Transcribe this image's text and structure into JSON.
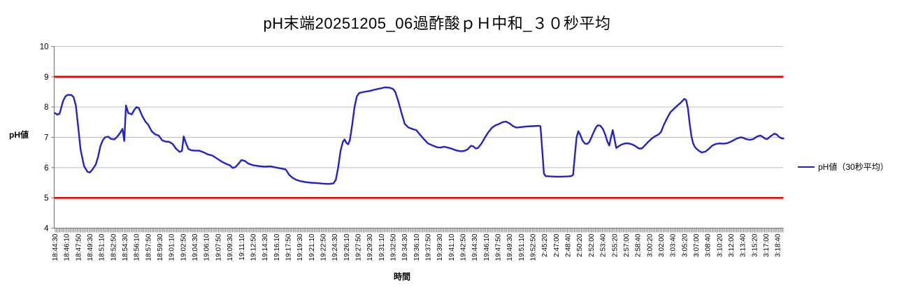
{
  "chart_data": {
    "type": "line",
    "title": "pH末端20251205_06過酢酸ｐＨ中和_３０秒平均",
    "xlabel": "時間",
    "ylabel": "pH値",
    "ylim": [
      4,
      10
    ],
    "y_ticks": [
      4,
      5,
      6,
      7,
      8,
      9,
      10
    ],
    "grid": true,
    "legend_position": "right",
    "colors": {
      "series_line": "#2222CC",
      "reference_line": "#E80000",
      "gridline": "#BFBFBF",
      "axis": "#808080",
      "text": "#000000",
      "background": "#FFFFFF"
    },
    "reference_lines": [
      {
        "name": "upper-limit",
        "value": 9,
        "color": "#E80000"
      },
      {
        "name": "lower-limit",
        "value": 5,
        "color": "#E80000"
      }
    ],
    "x_tick_labels": [
      "18:44:30",
      "18:46:10",
      "18:47:50",
      "18:49:30",
      "18:51:10",
      "18:52:50",
      "18:54:30",
      "18:56:10",
      "18:57:50",
      "18:59:30",
      "19:01:10",
      "19:02:50",
      "19:04:30",
      "19:06:10",
      "19:07:50",
      "19:09:30",
      "19:11:10",
      "19:12:50",
      "19:14:30",
      "19:16:10",
      "19:17:50",
      "19:19:30",
      "19:21:10",
      "19:22:50",
      "19:24:30",
      "19:26:10",
      "19:27:50",
      "19:29:30",
      "19:31:10",
      "19:32:50",
      "19:34:30",
      "19:36:10",
      "19:37:50",
      "19:39:30",
      "19:41:10",
      "19:42:50",
      "19:44:30",
      "19:46:10",
      "19:47:50",
      "19:49:30",
      "19:51:10",
      "19:52:50",
      "2:45:20",
      "2:47:00",
      "2:48:40",
      "2:50:20",
      "2:52:00",
      "2:53:40",
      "2:55:20",
      "2:57:00",
      "2:58:40",
      "3:00:20",
      "3:02:00",
      "3:03:40",
      "3:05:20",
      "3:07:00",
      "3:08:40",
      "3:10:20",
      "3:12:00",
      "3:13:40",
      "3:15:20",
      "3:17:00",
      "3:18:40"
    ],
    "x_range_label_units": [
      0,
      62.5
    ],
    "series": [
      {
        "name": "pH値（30秒平均）",
        "color": "#2222CC",
        "points_label_units": [
          [
            0,
            7.8
          ],
          [
            0.2,
            7.75
          ],
          [
            0.4,
            7.78
          ],
          [
            0.7,
            8.2
          ],
          [
            0.9,
            8.35
          ],
          [
            1.1,
            8.4
          ],
          [
            1.4,
            8.4
          ],
          [
            1.6,
            8.33
          ],
          [
            1.8,
            8.05
          ],
          [
            2.0,
            7.35
          ],
          [
            2.2,
            6.6
          ],
          [
            2.5,
            6.05
          ],
          [
            2.8,
            5.86
          ],
          [
            3.0,
            5.84
          ],
          [
            3.2,
            5.93
          ],
          [
            3.5,
            6.1
          ],
          [
            3.7,
            6.35
          ],
          [
            3.9,
            6.7
          ],
          [
            4.1,
            6.9
          ],
          [
            4.3,
            7.0
          ],
          [
            4.6,
            7.02
          ],
          [
            4.8,
            6.95
          ],
          [
            5.1,
            6.93
          ],
          [
            5.3,
            7.0
          ],
          [
            5.6,
            7.15
          ],
          [
            5.8,
            7.28
          ],
          [
            5.95,
            6.88
          ],
          [
            6.1,
            8.05
          ],
          [
            6.3,
            7.8
          ],
          [
            6.6,
            7.76
          ],
          [
            6.8,
            7.9
          ],
          [
            7.0,
            8.0
          ],
          [
            7.2,
            7.97
          ],
          [
            7.5,
            7.7
          ],
          [
            7.8,
            7.5
          ],
          [
            8.0,
            7.42
          ],
          [
            8.3,
            7.2
          ],
          [
            8.6,
            7.1
          ],
          [
            8.9,
            7.06
          ],
          [
            9.2,
            6.9
          ],
          [
            9.5,
            6.86
          ],
          [
            9.8,
            6.85
          ],
          [
            10.1,
            6.78
          ],
          [
            10.4,
            6.62
          ],
          [
            10.7,
            6.52
          ],
          [
            10.9,
            6.55
          ],
          [
            11.05,
            7.03
          ],
          [
            11.25,
            6.8
          ],
          [
            11.45,
            6.62
          ],
          [
            11.7,
            6.57
          ],
          [
            12.0,
            6.56
          ],
          [
            12.4,
            6.56
          ],
          [
            12.8,
            6.5
          ],
          [
            13.1,
            6.44
          ],
          [
            13.5,
            6.4
          ],
          [
            13.9,
            6.3
          ],
          [
            14.3,
            6.2
          ],
          [
            14.7,
            6.12
          ],
          [
            15.0,
            6.08
          ],
          [
            15.25,
            5.99
          ],
          [
            15.5,
            6.02
          ],
          [
            15.8,
            6.15
          ],
          [
            16.0,
            6.25
          ],
          [
            16.3,
            6.22
          ],
          [
            16.6,
            6.13
          ],
          [
            17.0,
            6.08
          ],
          [
            17.5,
            6.05
          ],
          [
            18.0,
            6.03
          ],
          [
            18.5,
            6.04
          ],
          [
            19.0,
            6.0
          ],
          [
            19.4,
            5.97
          ],
          [
            19.8,
            5.94
          ],
          [
            20.1,
            5.76
          ],
          [
            20.4,
            5.66
          ],
          [
            20.7,
            5.6
          ],
          [
            21.0,
            5.56
          ],
          [
            21.5,
            5.52
          ],
          [
            22.0,
            5.5
          ],
          [
            22.5,
            5.49
          ],
          [
            23.0,
            5.47
          ],
          [
            23.5,
            5.46
          ],
          [
            23.9,
            5.48
          ],
          [
            24.1,
            5.6
          ],
          [
            24.3,
            6.0
          ],
          [
            24.5,
            6.55
          ],
          [
            24.7,
            6.85
          ],
          [
            24.85,
            6.93
          ],
          [
            25.0,
            6.82
          ],
          [
            25.15,
            6.77
          ],
          [
            25.3,
            6.9
          ],
          [
            25.5,
            7.4
          ],
          [
            25.7,
            8.0
          ],
          [
            25.9,
            8.35
          ],
          [
            26.1,
            8.46
          ],
          [
            26.5,
            8.5
          ],
          [
            27.0,
            8.53
          ],
          [
            27.5,
            8.58
          ],
          [
            28.0,
            8.62
          ],
          [
            28.3,
            8.65
          ],
          [
            28.7,
            8.64
          ],
          [
            29.0,
            8.6
          ],
          [
            29.2,
            8.5
          ],
          [
            29.45,
            8.2
          ],
          [
            29.7,
            7.85
          ],
          [
            30.0,
            7.45
          ],
          [
            30.3,
            7.33
          ],
          [
            30.7,
            7.27
          ],
          [
            31.0,
            7.24
          ],
          [
            31.3,
            7.1
          ],
          [
            31.7,
            6.92
          ],
          [
            32.0,
            6.8
          ],
          [
            32.4,
            6.73
          ],
          [
            32.8,
            6.67
          ],
          [
            33.1,
            6.66
          ],
          [
            33.4,
            6.69
          ],
          [
            33.7,
            6.66
          ],
          [
            34.0,
            6.63
          ],
          [
            34.4,
            6.57
          ],
          [
            34.8,
            6.54
          ],
          [
            35.1,
            6.55
          ],
          [
            35.4,
            6.6
          ],
          [
            35.7,
            6.72
          ],
          [
            35.9,
            6.7
          ],
          [
            36.1,
            6.63
          ],
          [
            36.3,
            6.65
          ],
          [
            36.6,
            6.8
          ],
          [
            36.9,
            7.0
          ],
          [
            37.2,
            7.18
          ],
          [
            37.5,
            7.32
          ],
          [
            37.8,
            7.4
          ],
          [
            38.1,
            7.44
          ],
          [
            38.4,
            7.5
          ],
          [
            38.7,
            7.52
          ],
          [
            39.0,
            7.46
          ],
          [
            39.3,
            7.37
          ],
          [
            39.6,
            7.32
          ],
          [
            40.0,
            7.34
          ],
          [
            40.5,
            7.36
          ],
          [
            41.0,
            7.37
          ],
          [
            41.5,
            7.38
          ],
          [
            41.65,
            7.37
          ],
          [
            41.8,
            6.6
          ],
          [
            41.95,
            5.8
          ],
          [
            42.1,
            5.72
          ],
          [
            42.5,
            5.71
          ],
          [
            43.0,
            5.7
          ],
          [
            43.5,
            5.7
          ],
          [
            44.0,
            5.71
          ],
          [
            44.3,
            5.72
          ],
          [
            44.45,
            5.76
          ],
          [
            44.6,
            6.4
          ],
          [
            44.75,
            7.0
          ],
          [
            44.9,
            7.2
          ],
          [
            45.05,
            7.1
          ],
          [
            45.25,
            6.9
          ],
          [
            45.45,
            6.8
          ],
          [
            45.65,
            6.78
          ],
          [
            45.85,
            6.85
          ],
          [
            46.05,
            7.02
          ],
          [
            46.25,
            7.2
          ],
          [
            46.45,
            7.35
          ],
          [
            46.6,
            7.4
          ],
          [
            46.8,
            7.38
          ],
          [
            47.0,
            7.28
          ],
          [
            47.2,
            7.1
          ],
          [
            47.4,
            6.85
          ],
          [
            47.55,
            6.73
          ],
          [
            47.7,
            7.0
          ],
          [
            47.85,
            7.24
          ],
          [
            48.0,
            6.95
          ],
          [
            48.15,
            6.65
          ],
          [
            48.35,
            6.7
          ],
          [
            48.6,
            6.76
          ],
          [
            48.9,
            6.8
          ],
          [
            49.2,
            6.8
          ],
          [
            49.5,
            6.77
          ],
          [
            49.8,
            6.71
          ],
          [
            50.1,
            6.63
          ],
          [
            50.35,
            6.63
          ],
          [
            50.6,
            6.73
          ],
          [
            50.9,
            6.85
          ],
          [
            51.2,
            6.96
          ],
          [
            51.5,
            7.04
          ],
          [
            51.8,
            7.1
          ],
          [
            52.0,
            7.18
          ],
          [
            52.2,
            7.38
          ],
          [
            52.5,
            7.62
          ],
          [
            52.8,
            7.83
          ],
          [
            53.1,
            7.94
          ],
          [
            53.4,
            8.05
          ],
          [
            53.7,
            8.15
          ],
          [
            54.0,
            8.27
          ],
          [
            54.15,
            8.23
          ],
          [
            54.3,
            7.96
          ],
          [
            54.45,
            7.46
          ],
          [
            54.6,
            7.04
          ],
          [
            54.75,
            6.8
          ],
          [
            54.9,
            6.68
          ],
          [
            55.1,
            6.6
          ],
          [
            55.3,
            6.54
          ],
          [
            55.5,
            6.5
          ],
          [
            55.8,
            6.53
          ],
          [
            56.1,
            6.62
          ],
          [
            56.4,
            6.73
          ],
          [
            56.7,
            6.78
          ],
          [
            57.0,
            6.8
          ],
          [
            57.3,
            6.79
          ],
          [
            57.6,
            6.8
          ],
          [
            57.9,
            6.84
          ],
          [
            58.2,
            6.9
          ],
          [
            58.5,
            6.96
          ],
          [
            58.8,
            7.0
          ],
          [
            59.0,
            6.99
          ],
          [
            59.3,
            6.94
          ],
          [
            59.6,
            6.92
          ],
          [
            59.9,
            6.94
          ],
          [
            60.2,
            7.02
          ],
          [
            60.5,
            7.06
          ],
          [
            60.7,
            7.02
          ],
          [
            60.9,
            6.96
          ],
          [
            61.1,
            6.94
          ],
          [
            61.4,
            7.04
          ],
          [
            61.7,
            7.12
          ],
          [
            61.9,
            7.1
          ],
          [
            62.1,
            7.02
          ],
          [
            62.3,
            6.97
          ],
          [
            62.5,
            6.96
          ]
        ]
      }
    ]
  }
}
